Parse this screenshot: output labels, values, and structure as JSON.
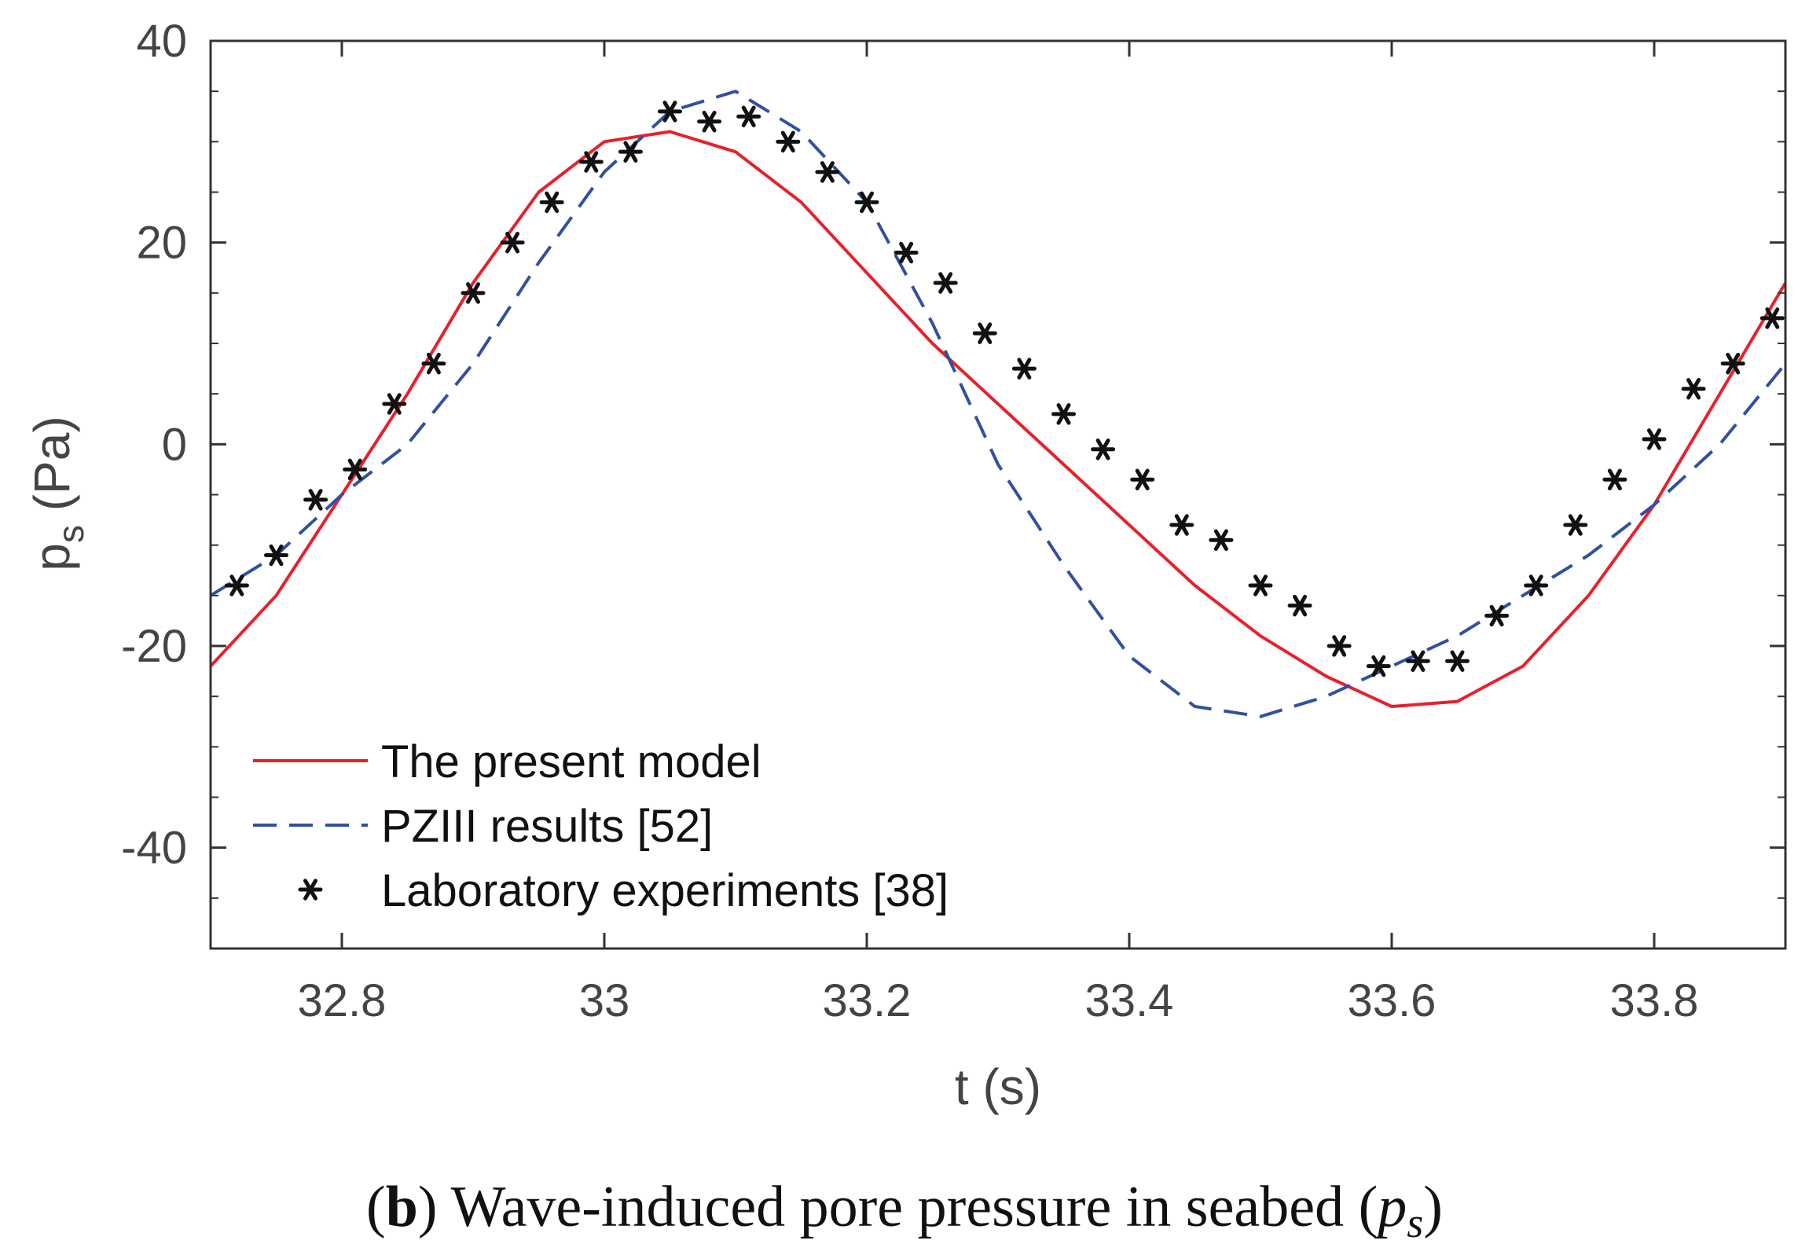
{
  "chart_data": {
    "type": "line",
    "xlabel": "t (s)",
    "ylabel": {
      "main": "p",
      "sub": "s",
      "unit": " (Pa)"
    },
    "xlim": [
      32.7,
      33.9
    ],
    "ylim": [
      -50,
      40
    ],
    "xticks": [
      32.8,
      33.0,
      33.2,
      33.4,
      33.6,
      33.8
    ],
    "xtick_labels": [
      "32.8",
      "33",
      "33.2",
      "33.4",
      "33.6",
      "33.8"
    ],
    "yticks": [
      40,
      20,
      0,
      -20,
      -40
    ],
    "ytick_labels": [
      "40",
      "20",
      "0",
      "-20",
      "-40"
    ],
    "minor_yticks": [
      35,
      30,
      25,
      15,
      10,
      5,
      -5,
      -10,
      -15,
      -25,
      -30,
      -35,
      -45
    ],
    "grid": false,
    "legend_position": "lower-left",
    "series": [
      {
        "name": "The present model",
        "style": "solid",
        "color": "#e8202a",
        "x": [
          32.7,
          32.75,
          32.8,
          32.85,
          32.9,
          32.95,
          33.0,
          33.05,
          33.1,
          33.15,
          33.2,
          33.25,
          33.3,
          33.35,
          33.4,
          33.45,
          33.5,
          33.55,
          33.6,
          33.65,
          33.7,
          33.75,
          33.8,
          33.85,
          33.9
        ],
        "y": [
          -22,
          -15,
          -5,
          5,
          16,
          25,
          30,
          31,
          29,
          24,
          17,
          10,
          4,
          -2,
          -8,
          -14,
          -19,
          -23,
          -26,
          -25.5,
          -22,
          -15,
          -6,
          5,
          16
        ]
      },
      {
        "name": "PZIII results [52]",
        "style": "dashed",
        "color": "#3050a0",
        "x": [
          32.7,
          32.75,
          32.8,
          32.85,
          32.9,
          32.95,
          33.0,
          33.05,
          33.1,
          33.15,
          33.2,
          33.25,
          33.3,
          33.35,
          33.4,
          33.45,
          33.5,
          33.55,
          33.6,
          33.65,
          33.7,
          33.75,
          33.8,
          33.85,
          33.9
        ],
        "y": [
          -15,
          -11,
          -5,
          0,
          8,
          18,
          27,
          33,
          35,
          31,
          24,
          12,
          -2,
          -12,
          -21,
          -26,
          -27,
          -25,
          -22,
          -19,
          -15,
          -11,
          -6,
          0,
          8
        ]
      },
      {
        "name": "Laboratory experiments [38]",
        "style": "marker",
        "marker": "asterisk",
        "color": "#111111",
        "x": [
          32.72,
          32.75,
          32.78,
          32.81,
          32.84,
          32.87,
          32.9,
          32.93,
          32.96,
          32.99,
          33.02,
          33.05,
          33.08,
          33.11,
          33.14,
          33.17,
          33.2,
          33.23,
          33.26,
          33.29,
          33.32,
          33.35,
          33.38,
          33.41,
          33.44,
          33.47,
          33.5,
          33.53,
          33.56,
          33.59,
          33.62,
          33.65,
          33.68,
          33.71,
          33.74,
          33.77,
          33.8,
          33.83,
          33.86,
          33.89
        ],
        "y": [
          -14,
          -11,
          -5.5,
          -2.5,
          4,
          8,
          15,
          20,
          24,
          28,
          29,
          33,
          32,
          32.5,
          30,
          27,
          24,
          19,
          16,
          11,
          7.5,
          3,
          -0.5,
          -3.5,
          -8,
          -9.5,
          -14,
          -16,
          -20,
          -22,
          -21.5,
          -21.5,
          -17,
          -14,
          -8,
          -3.5,
          0.5,
          5.5,
          8,
          12.5
        ]
      }
    ],
    "caption": {
      "open": "(",
      "letter": "b",
      "text": ") Wave-induced pore pressure in seabed (",
      "symbol_main": "p",
      "symbol_sub": "s",
      "close": ")"
    }
  }
}
